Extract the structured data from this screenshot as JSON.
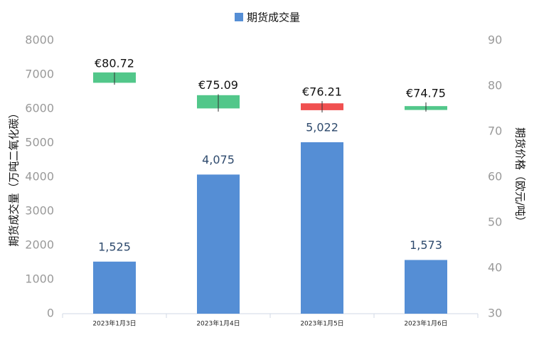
{
  "chart_data": {
    "type": "bar",
    "categories": [
      "2023年1月3日",
      "2023年1月4日",
      "2023年1月5日",
      "2023年1月6日"
    ],
    "series": [
      {
        "name": "期货成交量",
        "color": "#558ed5",
        "values": [
          1525,
          4075,
          5022,
          1573
        ],
        "value_labels": [
          "1,525",
          "4,075",
          "5,022",
          "1,573"
        ]
      }
    ],
    "candles": {
      "type": "candlestick",
      "axis": "y2",
      "open": [
        83.0,
        78.0,
        74.7,
        75.6
      ],
      "close": [
        80.72,
        75.09,
        76.21,
        74.75
      ],
      "high": [
        83.0,
        78.2,
        76.7,
        76.4
      ],
      "low": [
        80.3,
        74.4,
        74.2,
        74.4
      ],
      "colors": [
        "#52c78a",
        "#52c78a",
        "#f05050",
        "#52c78a"
      ],
      "value_labels": [
        "€80.72",
        "€75.09",
        "€76.21",
        "€74.75"
      ]
    },
    "ylabel": "期货成交量（万吨二氧化碳）",
    "y2label": "期货价格（欧元/吨）",
    "ylim": [
      0,
      8000
    ],
    "yticks": [
      0,
      1000,
      2000,
      3000,
      4000,
      5000,
      6000,
      7000,
      8000
    ],
    "y2lim": [
      30,
      90
    ],
    "y2ticks": [
      30,
      40,
      50,
      60,
      70,
      80,
      90
    ],
    "legend": "top"
  }
}
